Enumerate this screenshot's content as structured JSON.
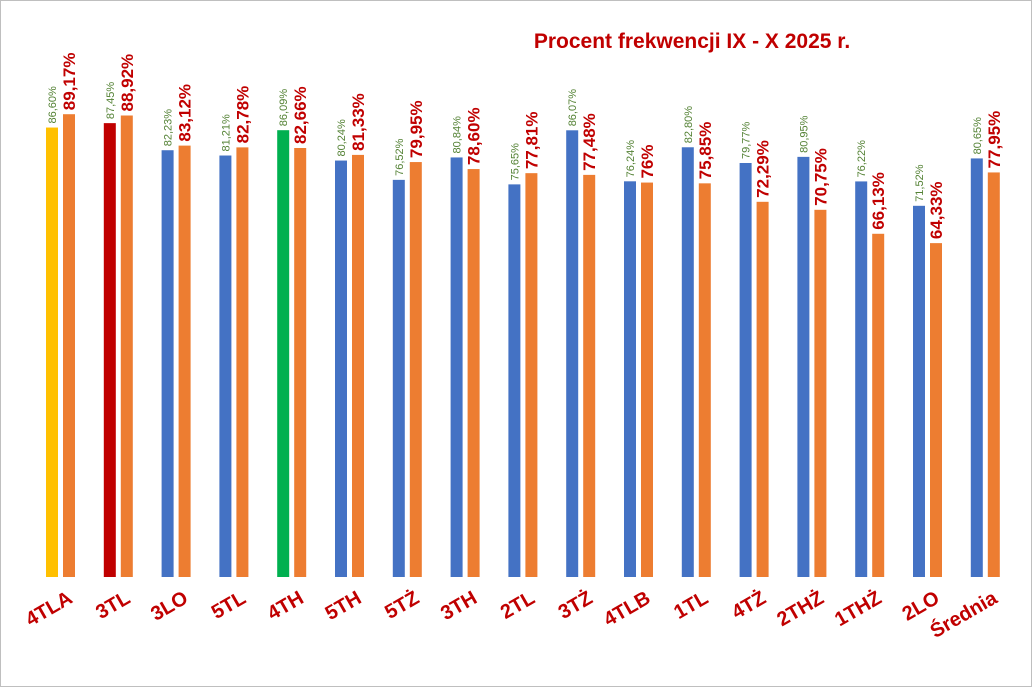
{
  "chart_data": {
    "type": "bar",
    "title": "Procent frekwencji IX - X 2025 r.",
    "xlabel": "",
    "ylabel": "",
    "ylim": [
      0,
      100
    ],
    "grid": false,
    "legend": "none",
    "categories": [
      "4TLA",
      "3TL",
      "3LO",
      "5TL",
      "4TH",
      "5TH",
      "5TŻ",
      "3TH",
      "2TL",
      "3TŻ",
      "4TLB",
      "1TL",
      "4TŻ",
      "2THŻ",
      "1THŻ",
      "2LO",
      "Średnia"
    ],
    "series": [
      {
        "values": [
          86.6,
          87.45,
          82.23,
          81.21,
          86.09,
          80.24,
          76.52,
          80.84,
          75.65,
          86.07,
          76.24,
          82.8,
          79.77,
          80.95,
          76.22,
          71.52,
          80.65
        ],
        "labels": [
          "86,60%",
          "87,45%",
          "82,23%",
          "81,21%",
          "86,09%",
          "80,24%",
          "76,52%",
          "80,84%",
          "75,65%",
          "86,07%",
          "76,24%",
          "82,80%",
          "79,77%",
          "80,95%",
          "76,22%",
          "71,52%",
          "80,65%"
        ],
        "color": "#4472c4",
        "highlight_colors": {
          "4TLA": "#ffc000",
          "3TL": "#c00000",
          "4TH": "#00b050"
        },
        "label_color": "#548235"
      },
      {
        "values": [
          89.17,
          88.92,
          83.12,
          82.78,
          82.66,
          81.33,
          79.95,
          78.6,
          77.81,
          77.48,
          76.0,
          75.85,
          72.29,
          70.75,
          66.13,
          64.33,
          77.95
        ],
        "labels": [
          "89,17%",
          "88,92%",
          "83,12%",
          "82,78%",
          "82,66%",
          "81,33%",
          "79,95%",
          "78,60%",
          "77,81%",
          "77,48%",
          "76%",
          "75,85%",
          "72,29%",
          "70,75%",
          "66,13%",
          "64,33%",
          "77,95%"
        ],
        "color": "#ed7d31",
        "label_color": "#c00000"
      }
    ],
    "title_color": "#c00000",
    "category_label_color": "#c00000"
  }
}
